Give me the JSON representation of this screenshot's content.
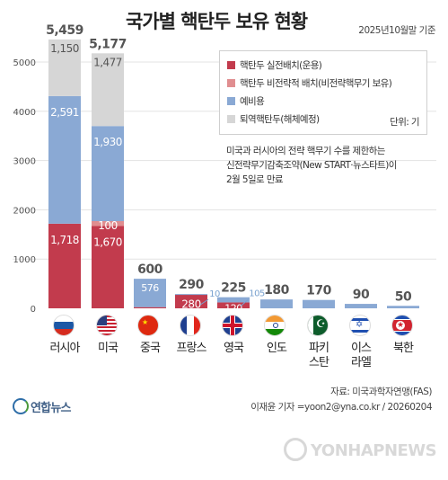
{
  "header": {
    "title": "국가별 핵탄두 보유 현황",
    "date": "2025년10월말 기준"
  },
  "legend": {
    "items": [
      {
        "label": "핵탄두 실전배치(운용)",
        "color": "#c23b4d"
      },
      {
        "label": "핵탄두 비전략적 배치(비전략핵무기 보유)",
        "color": "#e08e90"
      },
      {
        "label": "예비용",
        "color": "#8aa9d4"
      },
      {
        "label": "퇴역핵탄두(해체예정)",
        "color": "#d6d6d6"
      }
    ],
    "unit": "단위: 기"
  },
  "note": {
    "line1": "미국과 러시아의 전략 핵무기 수를 제한하는",
    "line2": "신전략무기감축조약(New START·뉴스타트)이",
    "line3": "2월 5일로 만료"
  },
  "chart_data": {
    "type": "bar",
    "stacked": true,
    "categories": [
      "러시아",
      "미국",
      "중국",
      "프랑스",
      "영국",
      "인도",
      "파키스탄",
      "이스라엘",
      "북한"
    ],
    "category_lines": [
      [
        "러시아"
      ],
      [
        "미국"
      ],
      [
        "중국"
      ],
      [
        "프랑스"
      ],
      [
        "영국"
      ],
      [
        "인도"
      ],
      [
        "파키",
        "스탄"
      ],
      [
        "이스",
        "라엘"
      ],
      [
        "북한"
      ]
    ],
    "series": [
      {
        "name": "핵탄두 실전배치(운용)",
        "values": [
          1718,
          1670,
          24,
          280,
          120,
          0,
          0,
          0,
          0
        ]
      },
      {
        "name": "핵탄두 비전략적 배치(비전략핵무기 보유)",
        "values": [
          0,
          100,
          0,
          0,
          0,
          0,
          0,
          0,
          0
        ]
      },
      {
        "name": "예비용",
        "values": [
          2591,
          1930,
          576,
          10,
          105,
          180,
          170,
          90,
          50
        ]
      },
      {
        "name": "퇴역핵탄두(해체예정)",
        "values": [
          1150,
          1477,
          0,
          0,
          0,
          0,
          0,
          0,
          0
        ]
      }
    ],
    "totals": [
      5459,
      5177,
      600,
      290,
      225,
      180,
      170,
      90,
      50
    ],
    "ylim": [
      0,
      5500
    ],
    "yticks": [
      0,
      1000,
      2000,
      3000,
      4000,
      5000
    ],
    "grid": true,
    "legend_position": "top-right",
    "colors": {
      "deployed": "#c23b4d",
      "nonstrategic": "#e08e90",
      "reserve": "#8aa9d4",
      "retired": "#d6d6d6",
      "total_label": "#555555",
      "reserve_label": "#7aa2cf"
    }
  },
  "footer": {
    "source": "자료: 미국과학자연맹(FAS)",
    "credit": "이재윤 기자 =yoon2@yna.co.kr / 20260204",
    "logo": "연합뉴스",
    "watermark": "YONHAPNEWS"
  }
}
